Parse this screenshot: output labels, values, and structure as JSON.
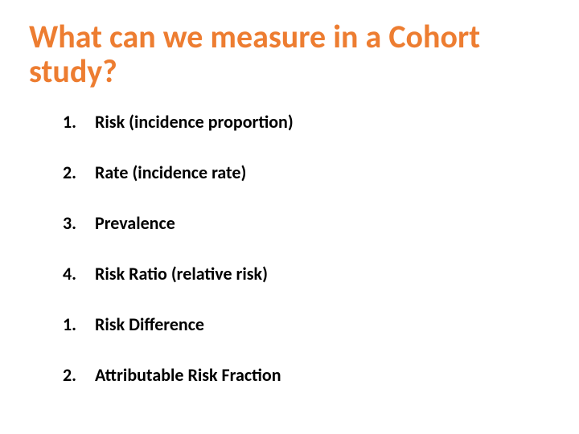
{
  "slide": {
    "title": "What can we measure in a Cohort study?",
    "title_color": "#ed7d31",
    "title_fontsize": 40,
    "title_fontweight": 700,
    "background_color": "#ffffff",
    "body_color": "#000000",
    "body_fontsize": 22,
    "body_fontweight": 700,
    "items": [
      {
        "num": "1.",
        "text": "Risk (incidence proportion)"
      },
      {
        "num": "2.",
        "text": "Rate (incidence rate)"
      },
      {
        "num": "3.",
        "text": "Prevalence"
      },
      {
        "num": "4.",
        "text": "Risk Ratio (relative risk)"
      },
      {
        "num": "1.",
        "text": "Risk Difference"
      },
      {
        "num": "2.",
        "text": "Attributable Risk Fraction"
      }
    ]
  }
}
